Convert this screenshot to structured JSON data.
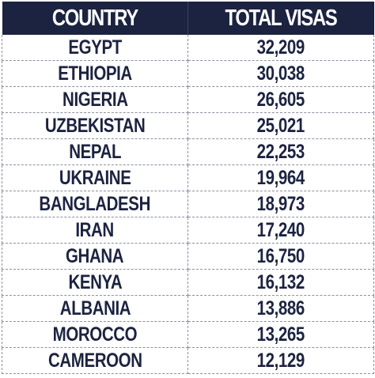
{
  "table": {
    "headers": [
      "COUNTRY",
      "TOTAL VISAS"
    ],
    "rows": [
      {
        "country": "EGYPT",
        "total_visas": "32,209"
      },
      {
        "country": "ETHIOPIA",
        "total_visas": "30,038"
      },
      {
        "country": "NIGERIA",
        "total_visas": "26,605"
      },
      {
        "country": "UZBEKISTAN",
        "total_visas": "25,021"
      },
      {
        "country": "NEPAL",
        "total_visas": "22,253"
      },
      {
        "country": "UKRAINE",
        "total_visas": "19,964"
      },
      {
        "country": "BANGLADESH",
        "total_visas": "18,973"
      },
      {
        "country": "IRAN",
        "total_visas": "17,240"
      },
      {
        "country": "GHANA",
        "total_visas": "16,750"
      },
      {
        "country": "KENYA",
        "total_visas": "16,132"
      },
      {
        "country": "ALBANIA",
        "total_visas": "13,886"
      },
      {
        "country": "MOROCCO",
        "total_visas": "13,265"
      },
      {
        "country": "CAMEROON",
        "total_visas": "12,129"
      }
    ]
  },
  "colors": {
    "header_bg": "#1c2340",
    "header_text": "#ffffff",
    "cell_text": "#1c2340",
    "border": "#8a8fa3"
  }
}
